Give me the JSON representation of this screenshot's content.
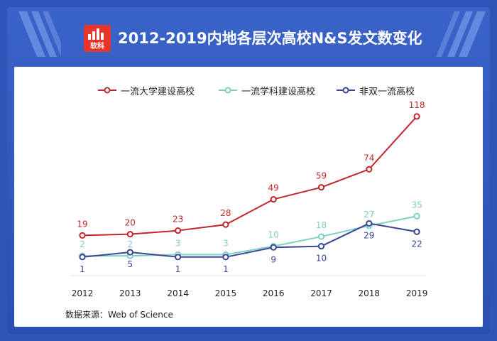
{
  "header": {
    "logo_text": "软科",
    "title": "2012-2019内地各层次高校N&S发文数变化"
  },
  "colors": {
    "background": "#2f55b8",
    "panel": "#ffffff",
    "logo": "#e8352b"
  },
  "chart_data": {
    "type": "line",
    "title": "2012-2019内地各层次高校N&S发文数变化",
    "x": [
      "2012",
      "2013",
      "2014",
      "2015",
      "2016",
      "2017",
      "2018",
      "2019"
    ],
    "ylim": [
      0,
      125
    ],
    "grid": false,
    "legend_position": "top",
    "series": [
      {
        "name": "一流大学建设高校",
        "color": "#c0282d",
        "values": [
          19,
          20,
          23,
          28,
          49,
          59,
          74,
          118
        ],
        "label_pos": "above"
      },
      {
        "name": "一流学科建设高校",
        "color": "#7ecfc4",
        "values": [
          2,
          2,
          3,
          3,
          10,
          18,
          27,
          35
        ],
        "label_pos": "above"
      },
      {
        "name": "非双一流高校",
        "color": "#3a4595",
        "values": [
          1,
          5,
          1,
          1,
          9,
          10,
          29,
          22
        ],
        "label_pos": "below"
      }
    ]
  },
  "source_note": "数据来源：Web of Science"
}
